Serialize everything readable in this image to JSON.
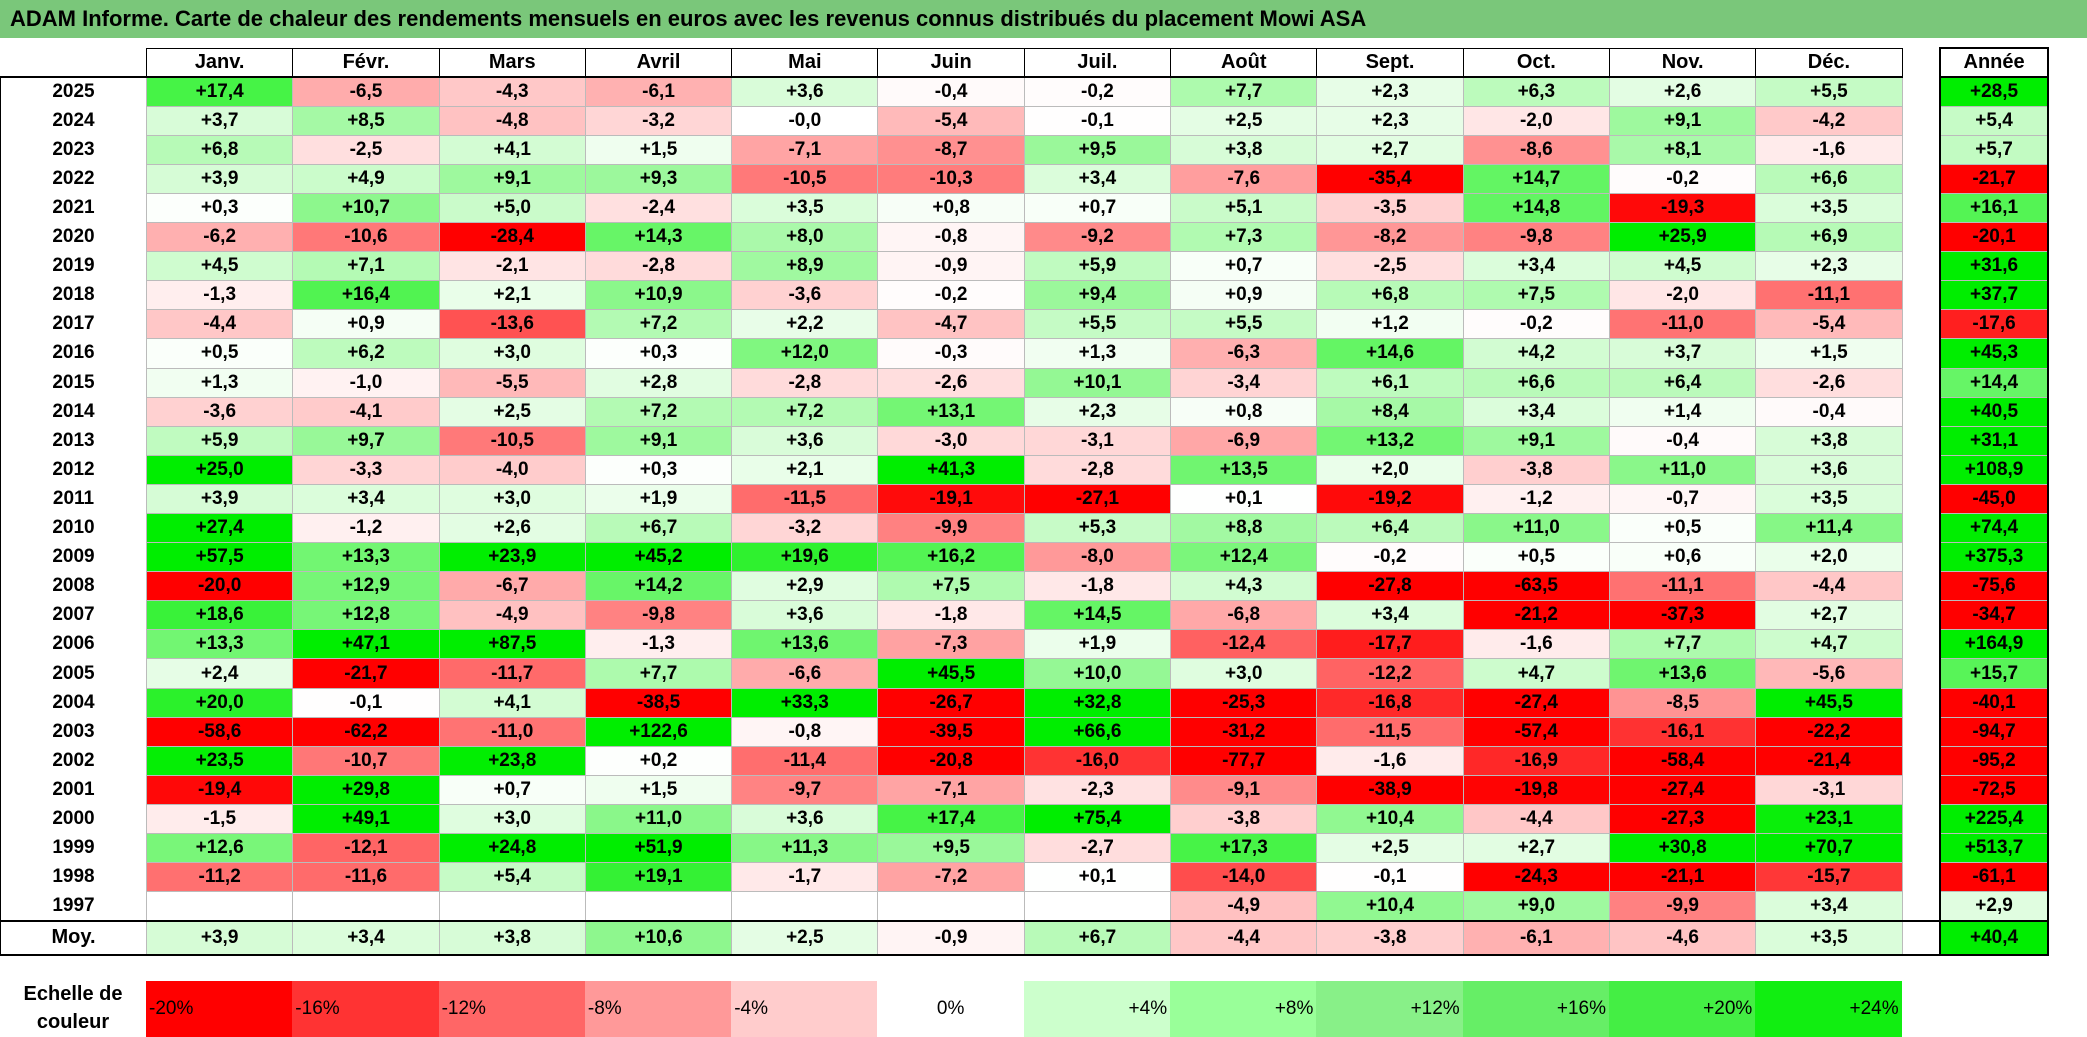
{
  "title": "ADAM Informe. Carte de chaleur des rendements mensuels en euros avec les revenus connus distribués du placement Mowi ASA",
  "chart_data": {
    "type": "heatmap",
    "title": "ADAM Informe. Carte de chaleur des rendements mensuels en euros avec les revenus connus distribués du placement Mowi ASA",
    "columns": [
      "Janv.",
      "Févr.",
      "Mars",
      "Avril",
      "Mai",
      "Juin",
      "Juil.",
      "Août",
      "Sept.",
      "Oct.",
      "Nov.",
      "Déc."
    ],
    "annual_header": "Année",
    "rows": [
      {
        "year": "2025",
        "values": [
          "+17,4",
          "-6,5",
          "-4,3",
          "-6,1",
          "+3,6",
          "-0,4",
          "-0,2",
          "+7,7",
          "+2,3",
          "+6,3",
          "+2,6",
          "+5,5"
        ],
        "annual": "+28,5"
      },
      {
        "year": "2024",
        "values": [
          "+3,7",
          "+8,5",
          "-4,8",
          "-3,2",
          "-0,0",
          "-5,4",
          "-0,1",
          "+2,5",
          "+2,3",
          "-2,0",
          "+9,1",
          "-4,2"
        ],
        "annual": "+5,4"
      },
      {
        "year": "2023",
        "values": [
          "+6,8",
          "-2,5",
          "+4,1",
          "+1,5",
          "-7,1",
          "-8,7",
          "+9,5",
          "+3,8",
          "+2,7",
          "-8,6",
          "+8,1",
          "-1,6"
        ],
        "annual": "+5,7"
      },
      {
        "year": "2022",
        "values": [
          "+3,9",
          "+4,9",
          "+9,1",
          "+9,3",
          "-10,5",
          "-10,3",
          "+3,4",
          "-7,6",
          "-35,4",
          "+14,7",
          "-0,2",
          "+6,6"
        ],
        "annual": "-21,7"
      },
      {
        "year": "2021",
        "values": [
          "+0,3",
          "+10,7",
          "+5,0",
          "-2,4",
          "+3,5",
          "+0,8",
          "+0,7",
          "+5,1",
          "-3,5",
          "+14,8",
          "-19,3",
          "+3,5"
        ],
        "annual": "+16,1"
      },
      {
        "year": "2020",
        "values": [
          "-6,2",
          "-10,6",
          "-28,4",
          "+14,3",
          "+8,0",
          "-0,8",
          "-9,2",
          "+7,3",
          "-8,2",
          "-9,8",
          "+25,9",
          "+6,9"
        ],
        "annual": "-20,1"
      },
      {
        "year": "2019",
        "values": [
          "+4,5",
          "+7,1",
          "-2,1",
          "-2,8",
          "+8,9",
          "-0,9",
          "+5,9",
          "+0,7",
          "-2,5",
          "+3,4",
          "+4,5",
          "+2,3"
        ],
        "annual": "+31,6"
      },
      {
        "year": "2018",
        "values": [
          "-1,3",
          "+16,4",
          "+2,1",
          "+10,9",
          "-3,6",
          "-0,2",
          "+9,4",
          "+0,9",
          "+6,8",
          "+7,5",
          "-2,0",
          "-11,1"
        ],
        "annual": "+37,7"
      },
      {
        "year": "2017",
        "values": [
          "-4,4",
          "+0,9",
          "-13,6",
          "+7,2",
          "+2,2",
          "-4,7",
          "+5,5",
          "+5,5",
          "+1,2",
          "-0,2",
          "-11,0",
          "-5,4"
        ],
        "annual": "-17,6"
      },
      {
        "year": "2016",
        "values": [
          "+0,5",
          "+6,2",
          "+3,0",
          "+0,3",
          "+12,0",
          "-0,3",
          "+1,3",
          "-6,3",
          "+14,6",
          "+4,2",
          "+3,7",
          "+1,5"
        ],
        "annual": "+45,3"
      },
      {
        "year": "2015",
        "values": [
          "+1,3",
          "-1,0",
          "-5,5",
          "+2,8",
          "-2,8",
          "-2,6",
          "+10,1",
          "-3,4",
          "+6,1",
          "+6,6",
          "+6,4",
          "-2,6"
        ],
        "annual": "+14,4"
      },
      {
        "year": "2014",
        "values": [
          "-3,6",
          "-4,1",
          "+2,5",
          "+7,2",
          "+7,2",
          "+13,1",
          "+2,3",
          "+0,8",
          "+8,4",
          "+3,4",
          "+1,4",
          "-0,4"
        ],
        "annual": "+40,5"
      },
      {
        "year": "2013",
        "values": [
          "+5,9",
          "+9,7",
          "-10,5",
          "+9,1",
          "+3,6",
          "-3,0",
          "-3,1",
          "-6,9",
          "+13,2",
          "+9,1",
          "-0,4",
          "+3,8"
        ],
        "annual": "+31,1"
      },
      {
        "year": "2012",
        "values": [
          "+25,0",
          "-3,3",
          "-4,0",
          "+0,3",
          "+2,1",
          "+41,3",
          "-2,8",
          "+13,5",
          "+2,0",
          "-3,8",
          "+11,0",
          "+3,6"
        ],
        "annual": "+108,9"
      },
      {
        "year": "2011",
        "values": [
          "+3,9",
          "+3,4",
          "+3,0",
          "+1,9",
          "-11,5",
          "-19,1",
          "-27,1",
          "+0,1",
          "-19,2",
          "-1,2",
          "-0,7",
          "+3,5"
        ],
        "annual": "-45,0"
      },
      {
        "year": "2010",
        "values": [
          "+27,4",
          "-1,2",
          "+2,6",
          "+6,7",
          "-3,2",
          "-9,9",
          "+5,3",
          "+8,8",
          "+6,4",
          "+11,0",
          "+0,5",
          "+11,4"
        ],
        "annual": "+74,4"
      },
      {
        "year": "2009",
        "values": [
          "+57,5",
          "+13,3",
          "+23,9",
          "+45,2",
          "+19,6",
          "+16,2",
          "-8,0",
          "+12,4",
          "-0,2",
          "+0,5",
          "+0,6",
          "+2,0"
        ],
        "annual": "+375,3"
      },
      {
        "year": "2008",
        "values": [
          "-20,0",
          "+12,9",
          "-6,7",
          "+14,2",
          "+2,9",
          "+7,5",
          "-1,8",
          "+4,3",
          "-27,8",
          "-63,5",
          "-11,1",
          "-4,4"
        ],
        "annual": "-75,6"
      },
      {
        "year": "2007",
        "values": [
          "+18,6",
          "+12,8",
          "-4,9",
          "-9,8",
          "+3,6",
          "-1,8",
          "+14,5",
          "-6,8",
          "+3,4",
          "-21,2",
          "-37,3",
          "+2,7"
        ],
        "annual": "-34,7"
      },
      {
        "year": "2006",
        "values": [
          "+13,3",
          "+47,1",
          "+87,5",
          "-1,3",
          "+13,6",
          "-7,3",
          "+1,9",
          "-12,4",
          "-17,7",
          "-1,6",
          "+7,7",
          "+4,7"
        ],
        "annual": "+164,9"
      },
      {
        "year": "2005",
        "values": [
          "+2,4",
          "-21,7",
          "-11,7",
          "+7,7",
          "-6,6",
          "+45,5",
          "+10,0",
          "+3,0",
          "-12,2",
          "+4,7",
          "+13,6",
          "-5,6"
        ],
        "annual": "+15,7"
      },
      {
        "year": "2004",
        "values": [
          "+20,0",
          "-0,1",
          "+4,1",
          "-38,5",
          "+33,3",
          "-26,7",
          "+32,8",
          "-25,3",
          "-16,8",
          "-27,4",
          "-8,5",
          "+45,5"
        ],
        "annual": "-40,1"
      },
      {
        "year": "2003",
        "values": [
          "-58,6",
          "-62,2",
          "-11,0",
          "+122,6",
          "-0,8",
          "-39,5",
          "+66,6",
          "-31,2",
          "-11,5",
          "-57,4",
          "-16,1",
          "-22,2"
        ],
        "annual": "-94,7"
      },
      {
        "year": "2002",
        "values": [
          "+23,5",
          "-10,7",
          "+23,8",
          "+0,2",
          "-11,4",
          "-20,8",
          "-16,0",
          "-77,7",
          "-1,6",
          "-16,9",
          "-58,4",
          "-21,4"
        ],
        "annual": "-95,2"
      },
      {
        "year": "2001",
        "values": [
          "-19,4",
          "+29,8",
          "+0,7",
          "+1,5",
          "-9,7",
          "-7,1",
          "-2,3",
          "-9,1",
          "-38,9",
          "-19,8",
          "-27,4",
          "-3,1"
        ],
        "annual": "-72,5"
      },
      {
        "year": "2000",
        "values": [
          "-1,5",
          "+49,1",
          "+3,0",
          "+11,0",
          "+3,6",
          "+17,4",
          "+75,4",
          "-3,8",
          "+10,4",
          "-4,4",
          "-27,3",
          "+23,1"
        ],
        "annual": "+225,4"
      },
      {
        "year": "1999",
        "values": [
          "+12,6",
          "-12,1",
          "+24,8",
          "+51,9",
          "+11,3",
          "+9,5",
          "-2,7",
          "+17,3",
          "+2,5",
          "+2,7",
          "+30,8",
          "+70,7"
        ],
        "annual": "+513,7"
      },
      {
        "year": "1998",
        "values": [
          "-11,2",
          "-11,6",
          "+5,4",
          "+19,1",
          "-1,7",
          "-7,2",
          "+0,1",
          "-14,0",
          "-0,1",
          "-24,3",
          "-21,1",
          "-15,7"
        ],
        "annual": "-61,1"
      },
      {
        "year": "1997",
        "values": [
          "",
          "",
          "",
          "",
          "",
          "",
          "",
          "-4,9",
          "+10,4",
          "+9,0",
          "-9,9",
          "+3,4"
        ],
        "annual": "+2,9"
      }
    ],
    "average": {
      "label": "Moy.",
      "values": [
        "+3,9",
        "+3,4",
        "+3,8",
        "+10,6",
        "+2,5",
        "-0,9",
        "+6,7",
        "-4,4",
        "-3,8",
        "-6,1",
        "-4,6",
        "+3,5"
      ],
      "annual": "+40,4"
    },
    "color_scale": {
      "label": "Echelle de couleur",
      "stops": [
        "-20%",
        "-16%",
        "-12%",
        "-8%",
        "-4%",
        "0%",
        "+4%",
        "+8%",
        "+12%",
        "+16%",
        "+20%",
        "+24%"
      ],
      "colors": [
        "#ff0000",
        "#ff3333",
        "#ff6666",
        "#ff9999",
        "#ffcccc",
        "#ffffff",
        "#ccffcc",
        "#99ff99",
        "#88f088",
        "#66ee66",
        "#44ee44",
        "#11ee11"
      ]
    }
  }
}
